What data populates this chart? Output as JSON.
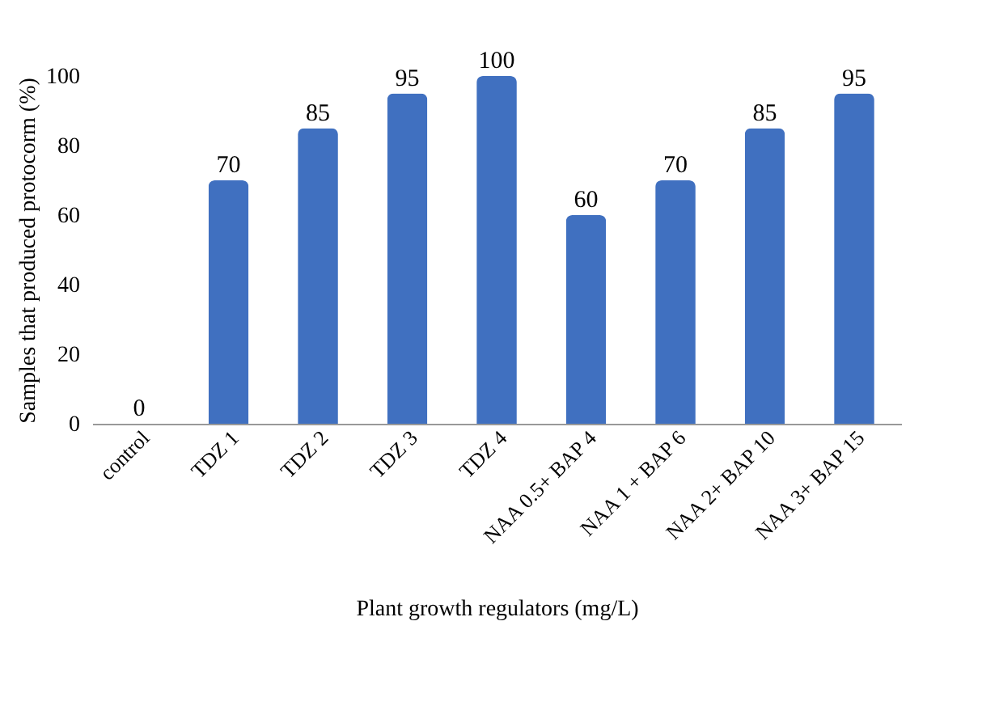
{
  "chart_data": {
    "type": "bar",
    "xlabel": "Plant growth regulators (mg/L)",
    "ylabel": "Samples that produced protocorm (%)",
    "categories": [
      "control",
      "TDZ 1",
      "TDZ 2",
      "TDZ 3",
      "TDZ 4",
      "NAA 0.5+ BAP 4",
      "NAA 1 + BAP 6",
      "NAA 2+ BAP 10",
      "NAA 3+ BAP 15"
    ],
    "values": [
      0,
      70,
      85,
      95,
      100,
      60,
      70,
      85,
      95
    ],
    "color": "#4070c0",
    "ylim": [
      0,
      100
    ],
    "yticks": [
      0,
      20,
      40,
      60,
      80,
      100
    ],
    "grid": false,
    "data_labels": true
  }
}
